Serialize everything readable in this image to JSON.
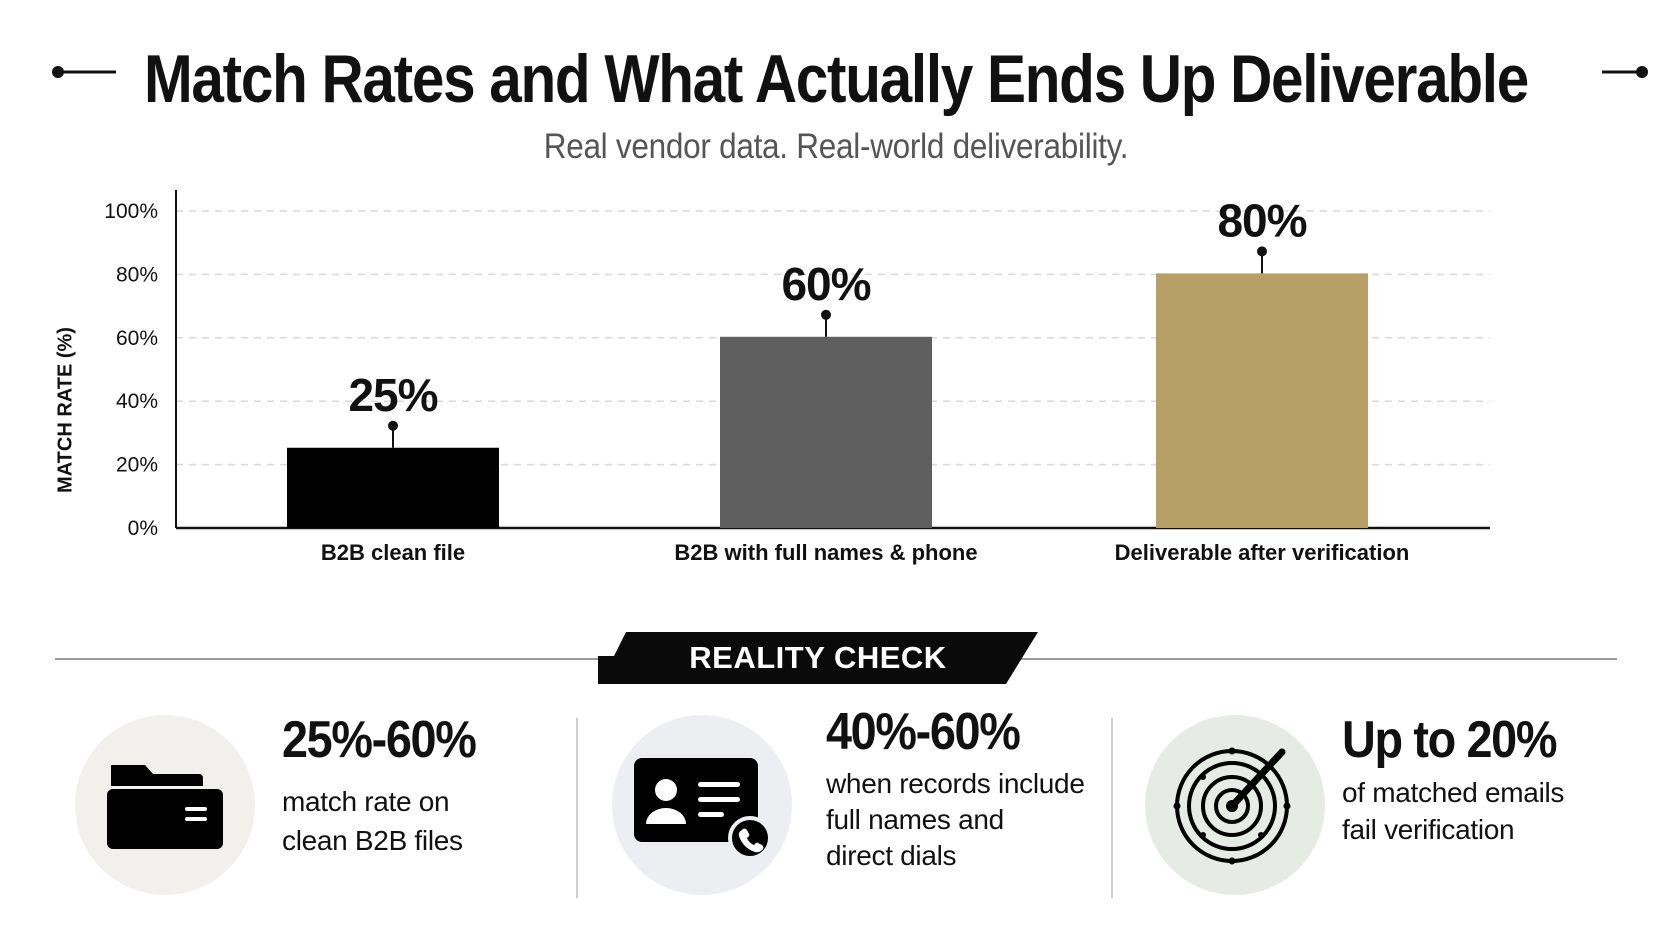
{
  "header": {
    "title": "Match Rates and What Actually Ends Up Deliverable",
    "subtitle": "Real vendor data. Real-world deliverability."
  },
  "chart_data": {
    "type": "bar",
    "title": "Match Rates and What Actually Ends Up Deliverable",
    "subtitle": "Real vendor data. Real-world deliverability.",
    "categories": [
      "B2B clean file",
      "B2B with full names & phone",
      "Deliverable after verification"
    ],
    "values": [
      25,
      60,
      80
    ],
    "data_labels": [
      "25%",
      "60%",
      "80%"
    ],
    "ylabel": "MATCH RATE (%)",
    "xlabel": "",
    "ylim": [
      0,
      100
    ],
    "yticks": [
      0,
      20,
      40,
      60,
      80,
      100
    ],
    "ytick_labels": [
      "0%",
      "20%",
      "40%",
      "60%",
      "80%",
      "100%"
    ],
    "grid": true,
    "legend": "none",
    "bar_colors": [
      "#000000",
      "#5f5f5f",
      "#b89f66"
    ]
  },
  "reality_check": {
    "label": "REALITY CHECK",
    "stats": [
      {
        "icon": "folder-icon",
        "value": "25%-60%",
        "lines": [
          "match rate on",
          "clean B2B files"
        ],
        "circle_color": "#f1f0ec"
      },
      {
        "icon": "contact-card-phone-icon",
        "value": "40%-60%",
        "lines": [
          "when records include",
          "full names and",
          "direct dials"
        ],
        "circle_color": "#eceef2"
      },
      {
        "icon": "radar-target-icon",
        "value": "Up to 20%",
        "lines": [
          "of matched emails",
          "fail verification"
        ],
        "circle_color": "#e7ebe5"
      }
    ]
  },
  "colors": {
    "grid": "#d9d9d9",
    "axis": "#111111",
    "banner": "#0a0a0a",
    "divider": "#9a9a9a"
  }
}
